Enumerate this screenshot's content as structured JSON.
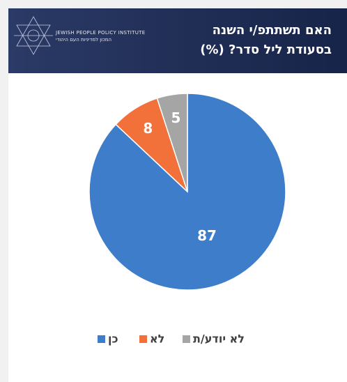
{
  "header": {
    "title_lines": [
      "האם תשתתפ/י השנה",
      "בסעודת ליל סדר? (%)"
    ],
    "logo_en": "JEWISH PEOPLE POLICY INSTITUTE",
    "logo_he": "המכון למדיניות העם היהודי"
  },
  "chart_data": {
    "type": "pie",
    "categories": [
      "כן",
      "לא",
      "לא יודע/ת"
    ],
    "values": [
      87,
      8,
      5
    ],
    "colors": [
      "#3d7dca",
      "#f2703a",
      "#a5a5a5"
    ]
  }
}
